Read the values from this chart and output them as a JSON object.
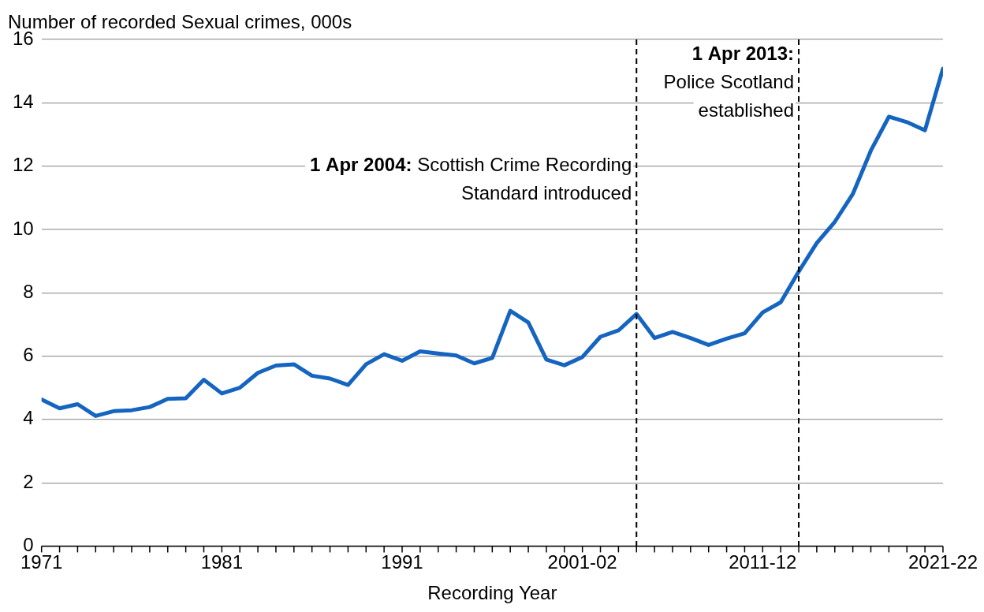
{
  "chart_data": {
    "type": "line",
    "ylabel": "Number of recorded Sexual crimes, 000s",
    "xlabel": "Recording Year",
    "x": [
      1971,
      1972,
      1973,
      1974,
      1975,
      1976,
      1977,
      1978,
      1979,
      1980,
      1981,
      1982,
      1983,
      1984,
      1985,
      1986,
      1987,
      1988,
      1989,
      1990,
      1991,
      1992,
      1993,
      1994,
      1995,
      1996,
      1997,
      1998,
      1999,
      2000,
      2001,
      2002,
      2003,
      2004,
      2005,
      2006,
      2007,
      2008,
      2009,
      2010,
      2011,
      2012,
      2013,
      2014,
      2015,
      2016,
      2017,
      2018,
      2019,
      2020,
      2021
    ],
    "series": [
      {
        "color": "#1565c0",
        "values": [
          4.63,
          4.35,
          4.48,
          4.11,
          4.26,
          4.29,
          4.39,
          4.65,
          4.67,
          5.25,
          4.82,
          5.0,
          5.47,
          5.7,
          5.74,
          5.38,
          5.29,
          5.09,
          5.74,
          6.06,
          5.85,
          6.15,
          6.08,
          6.02,
          5.77,
          5.94,
          7.43,
          7.06,
          5.89,
          5.71,
          5.97,
          6.61,
          6.81,
          7.33,
          6.57,
          6.76,
          6.57,
          6.35,
          6.55,
          6.72,
          7.38,
          7.7,
          8.67,
          9.57,
          10.24,
          11.12,
          12.49,
          13.56,
          13.39,
          13.13,
          15.08
        ]
      }
    ],
    "xlim": [
      1971,
      2021
    ],
    "xticks": [
      1971,
      1981,
      1991,
      {
        "value": 2001,
        "label": "2001-02"
      },
      {
        "value": 2011,
        "label": "2011-12"
      },
      {
        "value": 2021,
        "label": "2021-22"
      }
    ],
    "ylim": [
      0,
      16
    ],
    "yticks": [
      0,
      2,
      4,
      6,
      8,
      10,
      12,
      14,
      16
    ],
    "grid": "y",
    "marker": "none",
    "line_style": "solid",
    "ref_lines": [
      {
        "axis": "x",
        "value": 2004,
        "label": "1 Apr 2004: Scottish Crime Recording Standard introduced",
        "color": "#000000",
        "line_style": "dashed"
      },
      {
        "axis": "x",
        "value": 2013,
        "label": "1 Apr 2013: Police Scotland established",
        "color": "#000000",
        "line_style": "dashed"
      }
    ]
  }
}
